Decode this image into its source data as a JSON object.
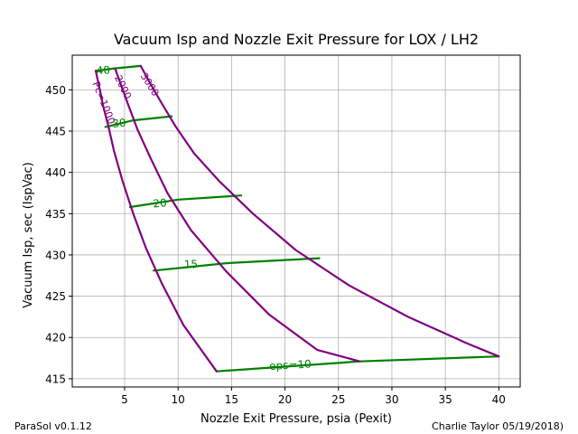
{
  "chart_data": {
    "type": "line",
    "title": "Vacuum Isp and Nozzle Exit Pressure for LOX / LH2",
    "xlabel": "Nozzle Exit Pressure, psia (Pexit)",
    "ylabel": "Vacuum Isp, sec (IspVac)",
    "xlim": [
      0.1,
      42
    ],
    "ylim": [
      414,
      454.2
    ],
    "xticks": [
      5,
      10,
      15,
      20,
      25,
      30,
      35,
      40
    ],
    "yticks": [
      415,
      420,
      425,
      430,
      435,
      440,
      445,
      450
    ],
    "grid": true,
    "pc_series": [
      {
        "name": "Pc=1000",
        "label": "Pc=1000",
        "color": "#800080",
        "x": [
          2.3,
          2.6,
          3.0,
          3.5,
          4.0,
          4.8,
          5.8,
          7.0,
          8.5,
          10.5,
          13.6
        ],
        "y": [
          452.3,
          450.5,
          448.0,
          445.5,
          442.6,
          439.0,
          435.0,
          430.8,
          426.5,
          421.5,
          415.9
        ]
      },
      {
        "name": "Pc=2000",
        "label": "2000",
        "color": "#800080",
        "x": [
          4.1,
          4.6,
          5.3,
          6.2,
          7.4,
          9.0,
          11.2,
          14.5,
          18.5,
          23.0,
          27.0
        ],
        "y": [
          452.6,
          450.8,
          448.3,
          445.2,
          441.8,
          437.5,
          433.0,
          428.0,
          422.8,
          418.5,
          417.1
        ]
      },
      {
        "name": "Pc=3000",
        "label": "3000",
        "color": "#800080",
        "x": [
          6.5,
          7.3,
          8.4,
          9.8,
          11.5,
          13.8,
          17.0,
          21.0,
          26.0,
          31.5,
          37.0,
          40.0
        ],
        "y": [
          452.9,
          451.0,
          448.5,
          445.5,
          442.3,
          439.0,
          435.0,
          430.6,
          426.3,
          422.5,
          419.3,
          417.7
        ]
      }
    ],
    "eps_series": [
      {
        "name": "eps=40",
        "label": "40",
        "color": "#008000",
        "x": [
          2.3,
          4.1,
          6.5
        ],
        "y": [
          452.3,
          452.6,
          452.9
        ]
      },
      {
        "name": "eps=30",
        "label": "30",
        "color": "#008000",
        "x": [
          3.2,
          5.8,
          9.4
        ],
        "y": [
          445.5,
          446.3,
          446.8
        ]
      },
      {
        "name": "eps=20",
        "label": "20",
        "color": "#008000",
        "x": [
          5.5,
          10.0,
          15.9
        ],
        "y": [
          435.8,
          436.7,
          437.2
        ]
      },
      {
        "name": "eps=15",
        "label": "15",
        "color": "#008000",
        "x": [
          7.7,
          14.5,
          23.2
        ],
        "y": [
          428.1,
          429.0,
          429.6
        ]
      },
      {
        "name": "eps=10",
        "label": "eps=10",
        "color": "#008000",
        "x": [
          13.6,
          27.0,
          40.0
        ],
        "y": [
          415.9,
          417.1,
          417.7
        ]
      }
    ],
    "annotations": [
      {
        "text": "Pc=1000",
        "x": 3.0,
        "y": 448.4,
        "angle": 68,
        "color": "#800080",
        "size": 11
      },
      {
        "text": "2000",
        "x": 4.8,
        "y": 450.3,
        "angle": 64,
        "color": "#800080",
        "size": 11
      },
      {
        "text": "3000",
        "x": 7.3,
        "y": 450.6,
        "angle": 58,
        "color": "#800080",
        "size": 11
      },
      {
        "text": "40",
        "x": 3.0,
        "y": 452.3,
        "angle": -4,
        "color": "#008000",
        "size": 12
      },
      {
        "text": "30",
        "x": 4.5,
        "y": 445.9,
        "angle": -6,
        "color": "#008000",
        "size": 12
      },
      {
        "text": "20",
        "x": 8.3,
        "y": 436.2,
        "angle": -5,
        "color": "#008000",
        "size": 12
      },
      {
        "text": "15",
        "x": 11.2,
        "y": 428.8,
        "angle": -3,
        "color": "#008000",
        "size": 12
      },
      {
        "text": "eps=10",
        "x": 20.5,
        "y": 416.6,
        "angle": -3,
        "color": "#008000",
        "size": 12
      }
    ]
  },
  "footer": {
    "left": "ParaSol v0.1.12",
    "right": "Charlie Taylor 05/19/2018)"
  }
}
